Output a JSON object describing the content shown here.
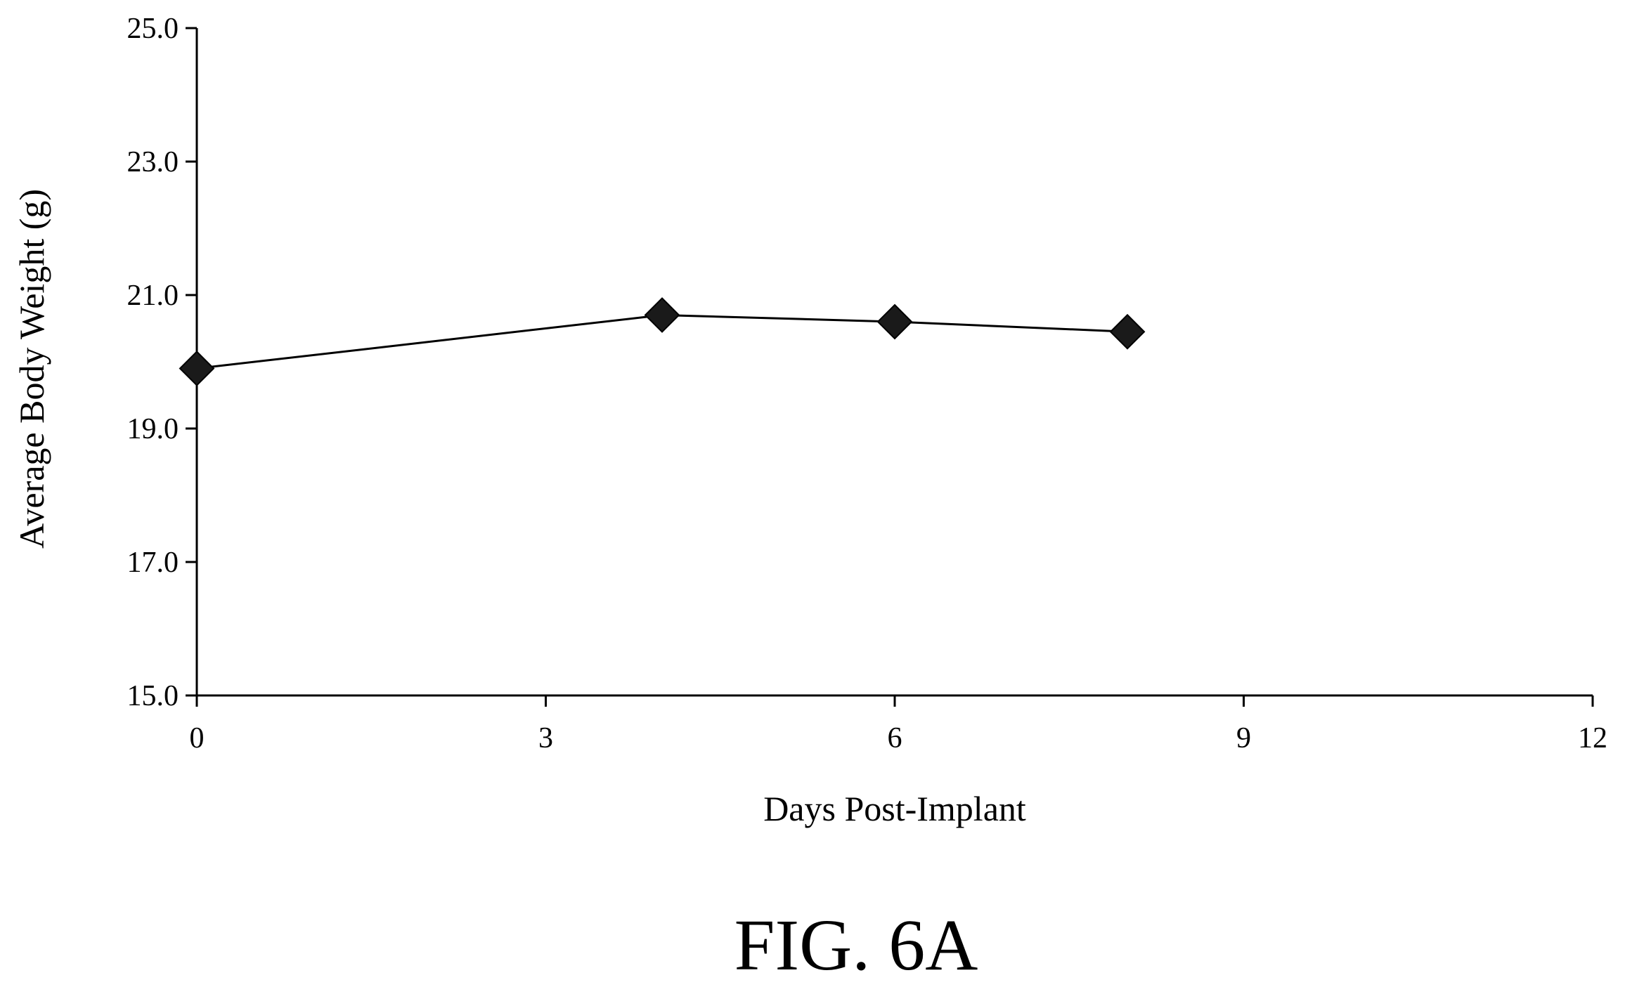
{
  "figure_label": "FIG. 6A",
  "chart_data": {
    "type": "line",
    "title": "",
    "xlabel": "Days Post-Implant",
    "ylabel": "Average Body Weight (g)",
    "xlim": [
      0,
      12
    ],
    "ylim": [
      15.0,
      25.0
    ],
    "x_ticks": [
      "0",
      "3",
      "6",
      "9",
      "12"
    ],
    "y_ticks": [
      "15.0",
      "17.0",
      "19.0",
      "21.0",
      "23.0",
      "25.0"
    ],
    "grid": false,
    "legend": "none",
    "marker": "diamond",
    "line_color": "#000000",
    "series": [
      {
        "x": [
          0,
          4,
          6,
          8
        ],
        "y": [
          19.9,
          20.7,
          20.6,
          20.45
        ]
      }
    ]
  }
}
